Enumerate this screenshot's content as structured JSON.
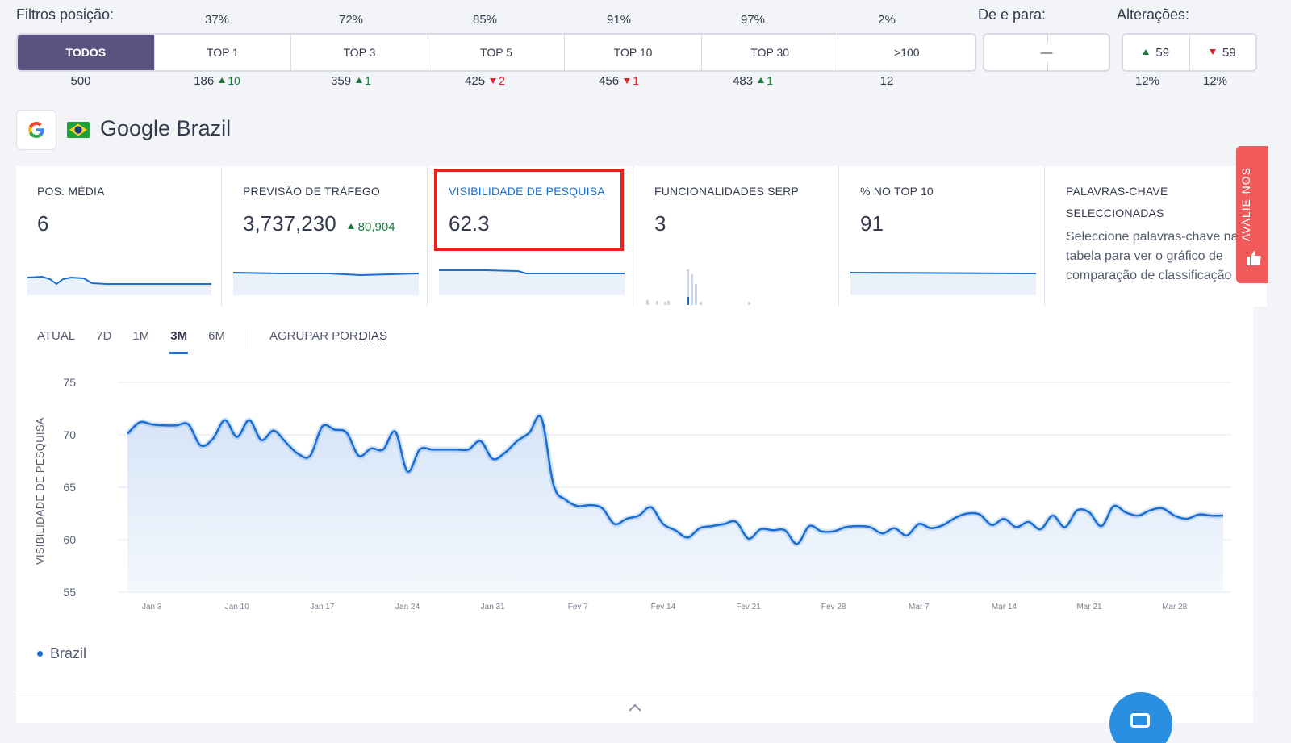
{
  "filters": {
    "label": "Filtros posição:",
    "tabs": [
      {
        "label": "TODOS",
        "pct": "",
        "count": "500",
        "change": "",
        "dir": ""
      },
      {
        "label": "TOP 1",
        "pct": "37%",
        "count": "186",
        "change": "10",
        "dir": "up"
      },
      {
        "label": "TOP 3",
        "pct": "72%",
        "count": "359",
        "change": "1",
        "dir": "up"
      },
      {
        "label": "TOP 5",
        "pct": "85%",
        "count": "425",
        "change": "2",
        "dir": "down"
      },
      {
        "label": "TOP 10",
        "pct": "91%",
        "count": "456",
        "change": "1",
        "dir": "down"
      },
      {
        "label": "TOP 30",
        "pct": "97%",
        "count": "483",
        "change": "1",
        "dir": "up"
      },
      {
        "label": ">100",
        "pct": "2%",
        "count": "12",
        "change": "",
        "dir": ""
      }
    ],
    "active_index": 0
  },
  "de_para": {
    "label": "De e para:",
    "value": "—"
  },
  "alteracoes": {
    "label": "Alterações:",
    "up": "59",
    "down": "59",
    "up_pct": "12%",
    "down_pct": "12%"
  },
  "engine": {
    "icon": "google-g-icon",
    "flag": "brazil-flag-icon",
    "title": "Google Brazil"
  },
  "cards": [
    {
      "label": "POS. MÉDIA",
      "value": "6",
      "delta": ""
    },
    {
      "label": "PREVISÃO DE TRÁFEGO",
      "value": "3,737,230",
      "delta": "80,904"
    },
    {
      "label": "VISIBILIDADE DE PESQUISA",
      "value": "62.3",
      "delta": ""
    },
    {
      "label": "FUNCIONALIDADES SERP",
      "value": "3",
      "delta": ""
    },
    {
      "label": "% NO TOP 10",
      "value": "91",
      "delta": ""
    },
    {
      "label": "PALAVRAS-CHAVE SELECCIONADAS",
      "value": "",
      "desc": "Seleccione palavras-chave na tabela para ver o gráfico de comparação de classificação"
    }
  ],
  "feedback_tab": "AVALIE-NOS",
  "ranges": [
    "ATUAL",
    "7D",
    "1M",
    "3M",
    "6M"
  ],
  "active_range": "3M",
  "group_by": {
    "label": "AGRUPAR POR:",
    "value": "DIAS"
  },
  "chart_data": {
    "type": "line",
    "ylabel": "VISIBILIDADE DE PESQUISA",
    "ylim": [
      55,
      75
    ],
    "yticks": [
      55,
      60,
      65,
      70,
      75
    ],
    "xtick_labels": [
      "Jan 3",
      "Jan 10",
      "Jan 17",
      "Jan 24",
      "Jan 31",
      "Fev 7",
      "Fev 14",
      "Fev 21",
      "Fev 28",
      "Mar 7",
      "Mar 14",
      "Mar 21",
      "Mar 28"
    ],
    "grid": true,
    "legend": "bottom-left",
    "series": [
      {
        "name": "Brazil",
        "color": "#1a6ed2",
        "values": [
          70.1,
          71.2,
          71.0,
          70.9,
          70.9,
          71.0,
          69.0,
          69.6,
          71.4,
          69.8,
          71.4,
          69.5,
          70.4,
          69.3,
          68.2,
          68.0,
          70.8,
          70.5,
          70.2,
          68.0,
          68.7,
          68.6,
          70.3,
          66.5,
          68.6,
          68.6,
          68.6,
          68.6,
          68.6,
          69.4,
          67.7,
          68.3,
          69.4,
          70.2,
          71.6,
          65.2,
          63.8,
          63.2,
          63.3,
          63.0,
          61.5,
          62.0,
          62.3,
          63.1,
          61.5,
          60.9,
          60.2,
          61.1,
          61.3,
          61.5,
          61.7,
          60.1,
          61.0,
          60.9,
          60.9,
          59.6,
          61.3,
          60.8,
          60.8,
          61.2,
          61.3,
          61.2,
          60.6,
          61.1,
          60.4,
          61.5,
          61.1,
          61.4,
          62.1,
          62.5,
          62.4,
          61.4,
          62.0,
          61.2,
          61.7,
          61.0,
          62.3,
          61.2,
          62.8,
          62.6,
          61.3,
          63.2,
          62.6,
          62.3,
          62.8,
          63.0,
          62.3,
          62.0,
          62.4,
          62.3,
          62.3
        ]
      }
    ]
  }
}
